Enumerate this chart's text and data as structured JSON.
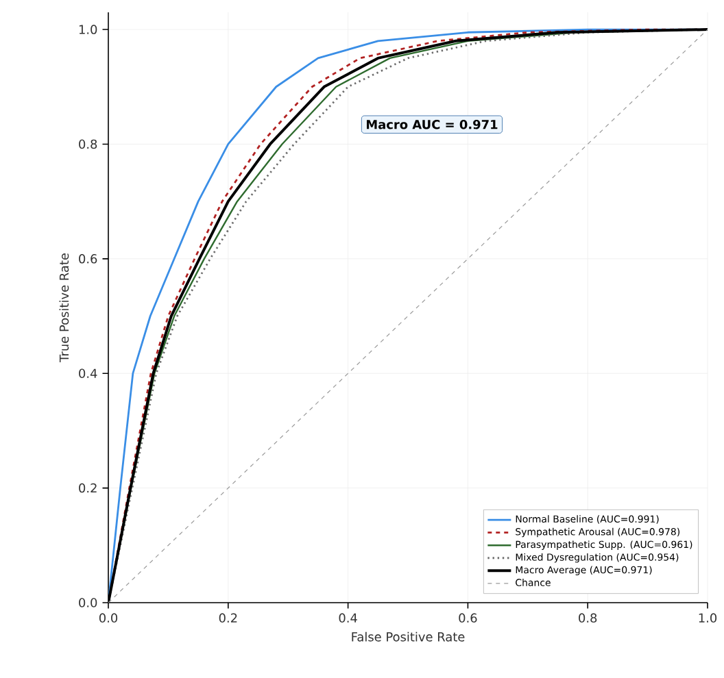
{
  "chart_data": {
    "type": "line",
    "xlabel": "False Positive Rate",
    "ylabel": "True Positive Rate",
    "xlim": [
      0,
      1
    ],
    "ylim": [
      0,
      1.03
    ],
    "xticks": [
      {
        "value": 0,
        "label": "0.0"
      },
      0.2,
      0.4,
      0.6,
      0.8,
      {
        "value": 1,
        "label": "1.0"
      }
    ],
    "yticks": [
      {
        "value": 0,
        "label": "0.0"
      },
      0.2,
      0.4,
      0.6,
      0.8,
      {
        "value": 1,
        "label": "1.0"
      }
    ],
    "grid": true,
    "legend": "bottom right",
    "marker": "none",
    "annotations": [
      "Macro AUC = 0.971"
    ],
    "series": [
      {
        "name": "Normal Baseline (AUC=0.991)",
        "color": "#3a8ee6",
        "line_style": "solid",
        "x": [
          0,
          0.02,
          0.041,
          0.07,
          0.11,
          0.15,
          0.2,
          0.28,
          0.35,
          0.45,
          0.6,
          0.8,
          1
        ],
        "values": [
          0,
          0.2,
          0.4,
          0.5,
          0.6,
          0.7,
          0.8,
          0.9,
          0.95,
          0.98,
          0.995,
          1,
          1
        ]
      },
      {
        "name": "Sympathetic Arousal (AUC=0.978)",
        "color": "#b22222",
        "line_style": "dashed",
        "x": [
          0,
          0.035,
          0.071,
          0.1,
          0.144,
          0.19,
          0.254,
          0.34,
          0.42,
          0.55,
          0.7,
          0.9,
          1
        ],
        "values": [
          0,
          0.2,
          0.4,
          0.5,
          0.6,
          0.7,
          0.8,
          0.9,
          0.95,
          0.98,
          0.995,
          1,
          1
        ]
      },
      {
        "name": "Parasympathetic Supp. (AUC=0.961)",
        "color": "#2e6b2e",
        "line_style": "solid",
        "x": [
          0,
          0.038,
          0.077,
          0.11,
          0.16,
          0.215,
          0.29,
          0.38,
          0.47,
          0.6,
          0.78,
          1
        ],
        "values": [
          0,
          0.2,
          0.4,
          0.5,
          0.6,
          0.7,
          0.8,
          0.9,
          0.95,
          0.98,
          0.995,
          1
        ]
      },
      {
        "name": "Mixed Dysregulation (AUC=0.954)",
        "color": "#6e6e6e",
        "line_style": "dotted",
        "x": [
          0,
          0.04,
          0.08,
          0.115,
          0.17,
          0.23,
          0.31,
          0.4,
          0.5,
          0.63,
          0.8,
          1
        ],
        "values": [
          0,
          0.2,
          0.4,
          0.5,
          0.6,
          0.7,
          0.8,
          0.9,
          0.95,
          0.98,
          0.995,
          1
        ]
      },
      {
        "name": "Macro Average (AUC=0.971)",
        "color": "#000000",
        "line_style": "solid",
        "x": [
          0,
          0.037,
          0.075,
          0.105,
          0.152,
          0.2,
          0.27,
          0.36,
          0.45,
          0.58,
          0.75,
          1
        ],
        "values": [
          0,
          0.2,
          0.4,
          0.5,
          0.6,
          0.7,
          0.8,
          0.9,
          0.95,
          0.98,
          0.995,
          1
        ]
      },
      {
        "name": "Chance",
        "color": "#9a9a9a",
        "line_style": "dashed",
        "x": [
          0,
          1
        ],
        "values": [
          0,
          1
        ]
      }
    ]
  }
}
